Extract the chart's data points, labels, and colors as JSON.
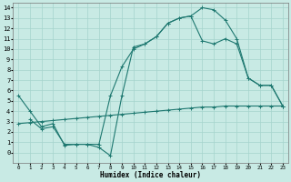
{
  "xlabel": "Humidex (Indice chaleur)",
  "background_color": "#c8eae4",
  "grid_color": "#a5d4cc",
  "line_color": "#1e7870",
  "xlim": [
    -0.5,
    23.5
  ],
  "ylim": [
    -1.0,
    14.5
  ],
  "xticks": [
    0,
    1,
    2,
    3,
    4,
    5,
    6,
    7,
    8,
    9,
    10,
    11,
    12,
    13,
    14,
    15,
    16,
    17,
    18,
    19,
    20,
    21,
    22,
    23
  ],
  "yticks": [
    0,
    1,
    2,
    3,
    4,
    5,
    6,
    7,
    8,
    9,
    10,
    11,
    12,
    13,
    14
  ],
  "line1_x": [
    0,
    1,
    2,
    3,
    4,
    5,
    6,
    7,
    8,
    9,
    10,
    11,
    12,
    13,
    14,
    15,
    16,
    17,
    18,
    19,
    20,
    21,
    22,
    23
  ],
  "line1_y": [
    5.5,
    4.0,
    2.5,
    2.8,
    0.7,
    0.8,
    0.8,
    0.5,
    -0.3,
    5.5,
    10.2,
    10.5,
    11.2,
    12.5,
    13.0,
    13.2,
    14.0,
    13.8,
    12.8,
    11.0,
    7.2,
    6.5,
    6.5,
    4.5
  ],
  "line2_x": [
    0,
    1,
    2,
    3,
    4,
    5,
    6,
    7,
    8,
    9,
    10,
    11,
    12,
    13,
    14,
    15,
    16,
    17,
    18,
    19,
    20,
    21,
    22,
    23
  ],
  "line2_y": [
    2.8,
    2.9,
    3.0,
    3.1,
    3.2,
    3.3,
    3.4,
    3.5,
    3.6,
    3.7,
    3.8,
    3.9,
    4.0,
    4.1,
    4.2,
    4.3,
    4.4,
    4.4,
    4.5,
    4.5,
    4.5,
    4.5,
    4.5,
    4.5
  ],
  "line3_x": [
    1,
    2,
    3,
    4,
    5,
    6,
    7,
    8,
    9,
    10,
    11,
    12,
    13,
    14,
    15,
    16,
    17,
    18,
    19,
    20,
    21,
    22,
    23
  ],
  "line3_y": [
    3.2,
    2.3,
    2.5,
    0.8,
    0.8,
    0.8,
    0.8,
    5.5,
    8.3,
    10.0,
    10.5,
    11.2,
    12.5,
    13.0,
    13.2,
    10.8,
    10.5,
    11.0,
    10.5,
    7.2,
    6.5,
    6.5,
    4.5
  ]
}
